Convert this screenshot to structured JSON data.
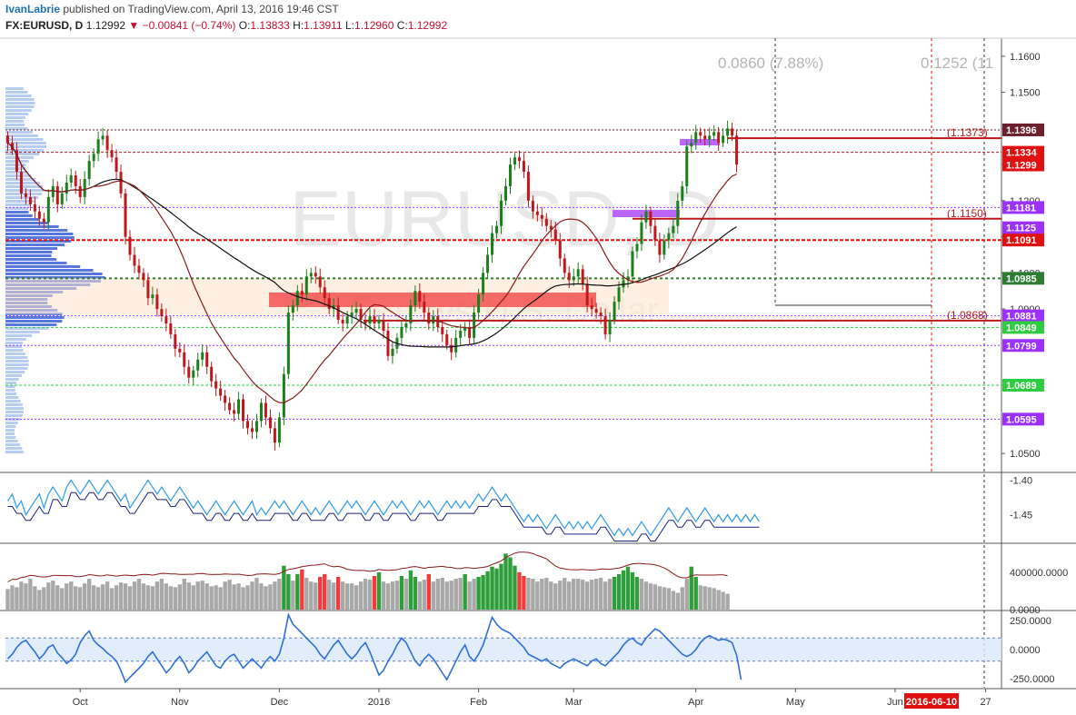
{
  "header": {
    "author": "IvanLabrie",
    "published": "published on TradingView.com, April 13, 2016 19:46 CST",
    "symbol": "FX:EURUSD, D",
    "last": "1.12992",
    "change": "−0.00841 (−0.74%)",
    "open_label": "O:",
    "open": "1.13833",
    "high_label": "H:",
    "high": "1.13911",
    "low_label": "L:",
    "low": "1.12960",
    "close_label": "C:",
    "close": "1.12992"
  },
  "chart_data": [
    {
      "type": "candlestick",
      "watermark_symbol": "EURUSD, D",
      "watermark_desc": "Euro vs U.S. Dollar",
      "ylim": [
        1.045,
        1.165
      ],
      "y_ticks": [
        "1.1600",
        "1.1500",
        "1.1400",
        "1.1300",
        "1.1200",
        "1.1100",
        "1.1000",
        "1.0900",
        "1.0500"
      ],
      "x_ticks": [
        {
          "label": "Oct",
          "index": 16
        },
        {
          "label": "Nov",
          "index": 38
        },
        {
          "label": "Dec",
          "index": 60
        },
        {
          "label": "2016",
          "index": 82
        },
        {
          "label": "Feb",
          "index": 104
        },
        {
          "label": "Mar",
          "index": 125
        },
        {
          "label": "Apr",
          "index": 152
        },
        {
          "label": "May",
          "index": 174
        },
        {
          "label": "Jun",
          "index": 196
        },
        {
          "label": "27",
          "index": 216
        }
      ],
      "date_marker": {
        "label": "2016-06-10",
        "index": 205
      },
      "close": [
        1.136,
        1.134,
        1.128,
        1.122,
        1.121,
        1.119,
        1.117,
        1.115,
        1.114,
        1.121,
        1.124,
        1.119,
        1.122,
        1.125,
        1.127,
        1.124,
        1.121,
        1.126,
        1.131,
        1.133,
        1.137,
        1.138,
        1.134,
        1.132,
        1.128,
        1.122,
        1.11,
        1.105,
        1.102,
        1.1,
        1.098,
        1.093,
        1.094,
        1.09,
        1.088,
        1.086,
        1.083,
        1.079,
        1.078,
        1.074,
        1.071,
        1.073,
        1.076,
        1.078,
        1.074,
        1.07,
        1.068,
        1.066,
        1.064,
        1.062,
        1.061,
        1.065,
        1.059,
        1.057,
        1.056,
        1.059,
        1.064,
        1.06,
        1.057,
        1.053,
        1.06,
        1.072,
        1.089,
        1.091,
        1.095,
        1.094,
        1.099,
        1.1,
        1.099,
        1.096,
        1.093,
        1.09,
        1.091,
        1.087,
        1.086,
        1.088,
        1.089,
        1.09,
        1.087,
        1.086,
        1.088,
        1.086,
        1.087,
        1.084,
        1.077,
        1.079,
        1.082,
        1.085,
        1.086,
        1.091,
        1.095,
        1.092,
        1.089,
        1.086,
        1.088,
        1.085,
        1.083,
        1.08,
        1.078,
        1.082,
        1.084,
        1.085,
        1.082,
        1.089,
        1.094,
        1.1,
        1.105,
        1.111,
        1.113,
        1.12,
        1.124,
        1.13,
        1.132,
        1.131,
        1.128,
        1.12,
        1.117,
        1.116,
        1.115,
        1.113,
        1.112,
        1.109,
        1.104,
        1.1,
        1.098,
        1.099,
        1.101,
        1.097,
        1.091,
        1.09,
        1.089,
        1.088,
        1.083,
        1.087,
        1.092,
        1.096,
        1.098,
        1.099,
        1.106,
        1.108,
        1.114,
        1.117,
        1.113,
        1.109,
        1.105,
        1.109,
        1.111,
        1.113,
        1.12,
        1.124,
        1.135,
        1.136,
        1.139,
        1.138,
        1.137,
        1.138,
        1.139,
        1.136,
        1.138,
        1.14,
        1.138,
        1.13
      ],
      "annotations": {
        "top_ratio_1": "0.0860 (7.88%)",
        "top_ratio_2": "0.1252 (11",
        "fib_1": "(1.1373)",
        "fib_2": "(1.1150)",
        "fib_3": "(1.0868)"
      },
      "price_labels": [
        {
          "text": "1.1396",
          "price": 1.1396,
          "color": "#6e1f2c"
        },
        {
          "text": "1.1334",
          "price": 1.1334,
          "color": "#e01010"
        },
        {
          "text": "1.1299",
          "price": 1.1299,
          "color": "#e01010"
        },
        {
          "text": "1.1181",
          "price": 1.1181,
          "color": "#9b30ff"
        },
        {
          "text": "1.1125",
          "price": 1.1125,
          "color": "#9b30ff"
        },
        {
          "text": "1.1091",
          "price": 1.1091,
          "color": "#e01010"
        },
        {
          "text": "1.0985",
          "price": 1.0985,
          "color": "#2e7d32"
        },
        {
          "text": "1.0881",
          "price": 1.0881,
          "color": "#9b30ff"
        },
        {
          "text": "1.0849",
          "price": 1.0849,
          "color": "#2ecc40"
        },
        {
          "text": "1.0799",
          "price": 1.0799,
          "color": "#9b30ff"
        },
        {
          "text": "1.0689",
          "price": 1.0689,
          "color": "#2ecc40"
        },
        {
          "text": "1.0595",
          "price": 1.0595,
          "color": "#9b30ff"
        }
      ]
    },
    {
      "type": "line",
      "name": "indicator-1",
      "y_ticks": [
        "-1.40",
        "-1.45"
      ],
      "ylim": [
        -1.49,
        -1.39
      ],
      "values": [
        -1.43,
        -1.42,
        -1.44,
        -1.43,
        -1.45,
        -1.44,
        -1.43,
        -1.42,
        -1.44,
        -1.42,
        -1.41,
        -1.42,
        -1.43,
        -1.41,
        -1.4,
        -1.41,
        -1.42,
        -1.41,
        -1.4,
        -1.41,
        -1.42,
        -1.41,
        -1.4,
        -1.41,
        -1.42,
        -1.43,
        -1.42,
        -1.44,
        -1.43,
        -1.42,
        -1.41,
        -1.4,
        -1.41,
        -1.42,
        -1.41,
        -1.42,
        -1.43,
        -1.42,
        -1.41,
        -1.42,
        -1.43,
        -1.44,
        -1.43,
        -1.44,
        -1.45,
        -1.44,
        -1.43,
        -1.44,
        -1.45,
        -1.44,
        -1.43,
        -1.44,
        -1.45,
        -1.44,
        -1.43,
        -1.45,
        -1.44,
        -1.45,
        -1.44,
        -1.43,
        -1.44,
        -1.43,
        -1.44,
        -1.45,
        -1.44,
        -1.43,
        -1.44,
        -1.45,
        -1.44,
        -1.45,
        -1.44,
        -1.43,
        -1.44,
        -1.45,
        -1.44,
        -1.43,
        -1.44,
        -1.43,
        -1.44,
        -1.45,
        -1.44,
        -1.43,
        -1.44,
        -1.45,
        -1.44,
        -1.43,
        -1.44,
        -1.43,
        -1.44,
        -1.45,
        -1.44,
        -1.43,
        -1.44,
        -1.43,
        -1.44,
        -1.45,
        -1.44,
        -1.43,
        -1.44,
        -1.43,
        -1.44,
        -1.43,
        -1.44,
        -1.43,
        -1.42,
        -1.43,
        -1.42,
        -1.41,
        -1.42,
        -1.43,
        -1.42,
        -1.43,
        -1.44,
        -1.45,
        -1.46,
        -1.45,
        -1.46,
        -1.45,
        -1.46,
        -1.47,
        -1.46,
        -1.45,
        -1.46,
        -1.47,
        -1.46,
        -1.47,
        -1.46,
        -1.47,
        -1.46,
        -1.47,
        -1.46,
        -1.45,
        -1.46,
        -1.47,
        -1.48,
        -1.47,
        -1.48,
        -1.47,
        -1.48,
        -1.47,
        -1.46,
        -1.47,
        -1.48,
        -1.47,
        -1.46,
        -1.45,
        -1.44,
        -1.45,
        -1.46,
        -1.45,
        -1.44,
        -1.45,
        -1.46,
        -1.45,
        -1.44,
        -1.45,
        -1.46,
        -1.45,
        -1.46,
        -1.45,
        -1.46,
        -1.45,
        -1.46,
        -1.45,
        -1.46,
        -1.45,
        -1.46
      ]
    },
    {
      "type": "bar",
      "name": "volume",
      "y_ticks": [
        "400000.0000",
        "0.0000"
      ],
      "ylim": [
        0,
        700000
      ],
      "values": [
        220000,
        260000,
        240000,
        300000,
        280000,
        330000,
        250000,
        210000,
        240000,
        290000,
        310000,
        260000,
        230000,
        280000,
        300000,
        250000,
        240000,
        280000,
        330000,
        260000,
        240000,
        270000,
        300000,
        230000,
        260000,
        290000,
        280000,
        250000,
        300000,
        330000,
        280000,
        260000,
        250000,
        300000,
        330000,
        280000,
        250000,
        240000,
        270000,
        330000,
        290000,
        260000,
        300000,
        310000,
        280000,
        250000,
        260000,
        240000,
        300000,
        320000,
        270000,
        280000,
        240000,
        260000,
        300000,
        340000,
        280000,
        250000,
        270000,
        300000,
        330000,
        470000,
        380000,
        310000,
        380000,
        430000,
        340000,
        300000,
        290000,
        350000,
        380000,
        320000,
        290000,
        350000,
        300000,
        280000,
        280000,
        260000,
        300000,
        330000,
        320000,
        360000,
        400000,
        300000,
        280000,
        300000,
        310000,
        360000,
        330000,
        420000,
        350000,
        300000,
        320000,
        380000,
        300000,
        330000,
        340000,
        300000,
        310000,
        330000,
        340000,
        380000,
        300000,
        330000,
        350000,
        370000,
        410000,
        460000,
        440000,
        490000,
        600000,
        560000,
        470000,
        400000,
        360000,
        340000,
        330000,
        300000,
        330000,
        340000,
        300000,
        280000,
        310000,
        340000,
        300000,
        330000,
        330000,
        320000,
        300000,
        320000,
        330000,
        340000,
        300000,
        330000,
        350000,
        380000,
        420000,
        460000,
        400000,
        350000,
        330000,
        300000,
        280000,
        270000,
        250000,
        240000,
        230000,
        200000,
        180000,
        240000,
        330000,
        460000,
        350000,
        260000,
        250000,
        240000,
        230000,
        210000,
        190000,
        170000
      ]
    },
    {
      "type": "line",
      "name": "oscillator",
      "y_ticks": [
        "250.0000",
        "0.0000",
        "-250.0000"
      ],
      "ylim": [
        -330,
        330
      ],
      "values": [
        -80,
        -40,
        20,
        60,
        80,
        30,
        -20,
        -80,
        -40,
        20,
        40,
        -30,
        -70,
        -120,
        -90,
        -40,
        60,
        120,
        160,
        80,
        40,
        10,
        -30,
        -60,
        -100,
        -180,
        -280,
        -240,
        -200,
        -160,
        -120,
        -60,
        -20,
        -80,
        -140,
        -200,
        -160,
        -100,
        -60,
        -120,
        -200,
        -160,
        -100,
        -60,
        -20,
        -80,
        -140,
        -160,
        -100,
        -60,
        -40,
        -100,
        -160,
        -120,
        -80,
        -120,
        -160,
        -100,
        -60,
        -100,
        -40,
        100,
        300,
        220,
        180,
        140,
        100,
        60,
        20,
        -40,
        -80,
        -20,
        40,
        80,
        20,
        -40,
        -80,
        -40,
        20,
        60,
        -20,
        -120,
        -220,
        -180,
        -100,
        -40,
        40,
        100,
        60,
        -20,
        -100,
        -140,
        -80,
        -40,
        -80,
        -140,
        -200,
        -260,
        -180,
        -100,
        -20,
        40,
        -60,
        -100,
        -40,
        40,
        160,
        280,
        220,
        180,
        160,
        140,
        100,
        60,
        20,
        -40,
        -60,
        -80,
        -100,
        -80,
        -120,
        -140,
        -160,
        -120,
        -100,
        -80,
        -100,
        -120,
        -140,
        -100,
        -80,
        -120,
        -140,
        -100,
        -60,
        -20,
        40,
        80,
        100,
        60,
        40,
        100,
        140,
        180,
        160,
        120,
        80,
        40,
        0,
        -40,
        -60,
        -40,
        0,
        60,
        100,
        120,
        100,
        80,
        90,
        80,
        60,
        -50,
        -260
      ]
    }
  ]
}
